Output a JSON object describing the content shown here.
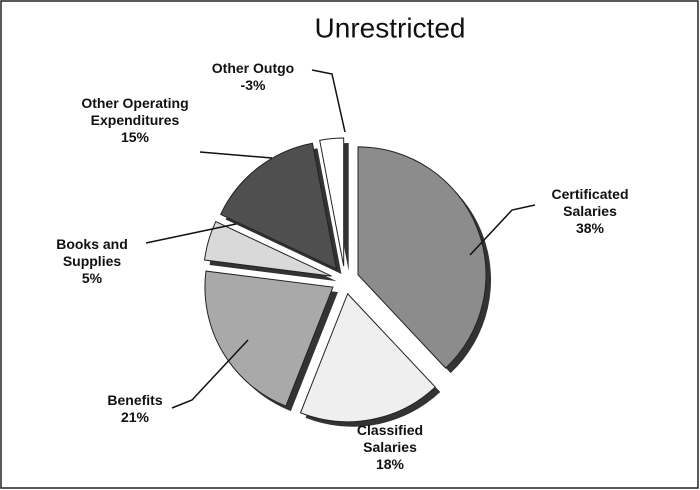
{
  "chart_data": {
    "type": "pie",
    "title": "Unrestricted",
    "categories": [
      "Certificated Salaries",
      "Classified Salaries",
      "Benefits",
      "Books and Supplies",
      "Other Operating Expenditures",
      "Other Outgo"
    ],
    "values": [
      38,
      18,
      21,
      5,
      15,
      -3
    ],
    "value_labels": [
      "38%",
      "18%",
      "21%",
      "5%",
      "15%",
      "-3%"
    ],
    "colors": [
      "#8c8c8c",
      "#efefef",
      "#a9a9a9",
      "#d9d9d9",
      "#4f4f4f",
      "#ffffff"
    ]
  }
}
